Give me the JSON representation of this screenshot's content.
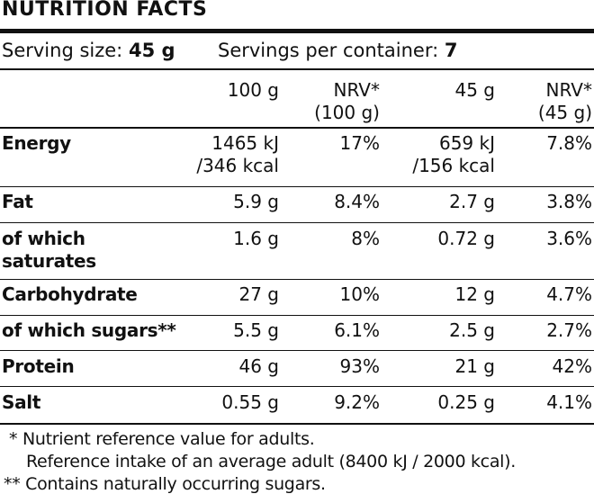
{
  "title": "NUTRITION FACTS",
  "serving": {
    "size_label": "Serving size:",
    "size_value": "45 g",
    "per_container_label": "Servings per container:",
    "per_container_value": "7"
  },
  "columns": {
    "c1": "100 g",
    "c2a": "NRV*",
    "c2b": "(100 g)",
    "c3": "45 g",
    "c4a": "NRV*",
    "c4b": "(45 g)"
  },
  "rows": [
    {
      "label": [
        "Energy"
      ],
      "v100": [
        "1465 kJ",
        "/346 kcal"
      ],
      "nrv100": "17%",
      "v45": [
        "659 kJ",
        "/156 kcal"
      ],
      "nrv45": "7.8%"
    },
    {
      "label": [
        "Fat"
      ],
      "v100": [
        "5.9 g"
      ],
      "nrv100": "8.4%",
      "v45": [
        "2.7 g"
      ],
      "nrv45": "3.8%"
    },
    {
      "label": [
        "of which",
        "saturates"
      ],
      "v100": [
        "1.6 g"
      ],
      "nrv100": "8%",
      "v45": [
        "0.72 g"
      ],
      "nrv45": "3.6%"
    },
    {
      "label": [
        "Carbohydrate"
      ],
      "v100": [
        "27 g"
      ],
      "nrv100": "10%",
      "v45": [
        "12 g"
      ],
      "nrv45": "4.7%"
    },
    {
      "label": [
        "of which sugars**"
      ],
      "v100": [
        "5.5 g"
      ],
      "nrv100": "6.1%",
      "v45": [
        "2.5 g"
      ],
      "nrv45": "2.7%"
    },
    {
      "label": [
        "Protein"
      ],
      "v100": [
        "46 g"
      ],
      "nrv100": "93%",
      "v45": [
        "21 g"
      ],
      "nrv45": "42%"
    },
    {
      "label": [
        "Salt"
      ],
      "v100": [
        "0.55 g"
      ],
      "nrv100": "9.2%",
      "v45": [
        "0.25 g"
      ],
      "nrv45": "4.1%"
    }
  ],
  "footnotes": {
    "f1": "* Nutrient reference value for adults.",
    "f2": "Reference intake of an average adult (8400 kJ / 2000 kcal).",
    "f3": "** Contains naturally occurring sugars."
  }
}
